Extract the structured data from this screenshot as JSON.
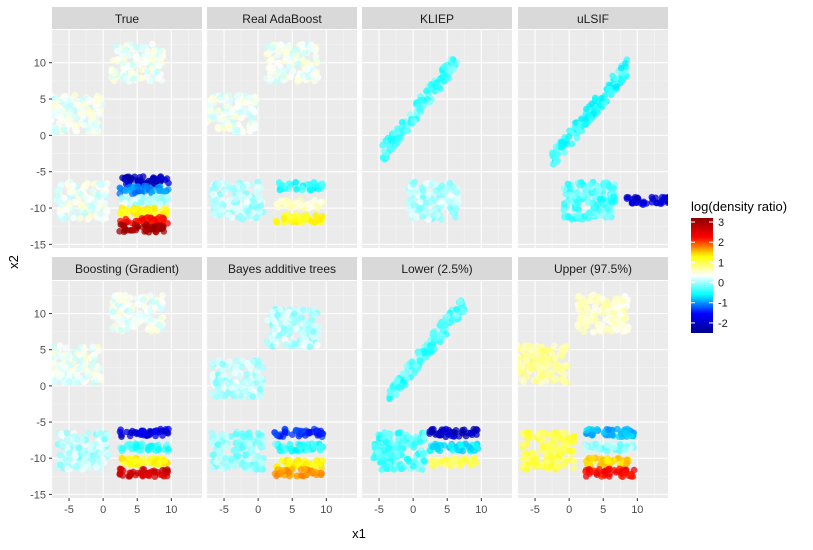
{
  "chart_data": {
    "type": "scatter",
    "title": "",
    "xlabel": "x1",
    "ylabel": "x2",
    "xlim": [
      -7.5,
      14.5
    ],
    "ylim": [
      -15.5,
      14.5
    ],
    "x_ticks": [
      -5,
      0,
      5,
      10
    ],
    "x_tick_labels": [
      "-5",
      "0",
      "5",
      "10"
    ],
    "y_ticks": [
      10,
      5,
      0,
      -5,
      -10,
      -15
    ],
    "y_tick_labels": [
      "10",
      "5",
      "0",
      "-5",
      "-10",
      "-15"
    ],
    "grid": true,
    "legend": {
      "title": "log(density ratio)",
      "position": "right",
      "range": [
        -2.5,
        3.2
      ],
      "ticks": [
        3,
        2,
        1,
        0,
        -1,
        -2
      ],
      "tick_labels": [
        "3",
        "2",
        "1",
        "0",
        "-1",
        "-2"
      ],
      "colors": [
        "#00008B",
        "#0000FF",
        "#00FFFF",
        "#FFFFFF",
        "#FFFF00",
        "#FF0000",
        "#8B0000"
      ]
    },
    "panels": [
      {
        "title": "True",
        "clusters": [
          {
            "name": "top-right cloud",
            "cx": 5,
            "cy": 10,
            "value": 0
          },
          {
            "name": "left cloud",
            "cx": -4,
            "cy": 3,
            "value": 0
          },
          {
            "name": "bottom-left cloud",
            "cx": -3,
            "cy": -9,
            "value": 0
          },
          {
            "name": "stripe -6",
            "cx": 6,
            "cy": -6.2,
            "value": -2.2
          },
          {
            "name": "stripe -7.5",
            "cx": 6,
            "cy": -7.5,
            "value": -1.2
          },
          {
            "name": "stripe -9",
            "cx": 6,
            "cy": -9,
            "value": -0.2
          },
          {
            "name": "stripe -10.5",
            "cx": 6,
            "cy": -10.5,
            "value": 1.0
          },
          {
            "name": "stripe -11.8",
            "cx": 6,
            "cy": -11.8,
            "value": 2.2
          },
          {
            "name": "stripe -12.8",
            "cx": 6,
            "cy": -12.8,
            "value": 3.0
          }
        ]
      },
      {
        "title": "Real AdaBoost",
        "clusters": [
          {
            "name": "top-right cloud",
            "cx": 5,
            "cy": 10,
            "value": 0
          },
          {
            "name": "left cloud",
            "cx": -4,
            "cy": 3,
            "value": 0
          },
          {
            "name": "bottom-left cloud",
            "cx": -3,
            "cy": -9,
            "value": -0.2
          },
          {
            "name": "band -7",
            "cx": 6,
            "cy": -7,
            "value": -0.6
          },
          {
            "name": "band -9.5",
            "cx": 6,
            "cy": -9.5,
            "value": 0.2
          },
          {
            "name": "band -11.5",
            "cx": 6,
            "cy": -11.5,
            "value": 0.9
          }
        ]
      },
      {
        "title": "KLIEP",
        "clusters": [
          {
            "name": "diagonal cloud",
            "cx": 1,
            "cy": 4,
            "value": -0.5
          },
          {
            "name": "bottom cloud",
            "cx": 3,
            "cy": -9,
            "value": -0.2
          }
        ]
      },
      {
        "title": "uLSIF",
        "clusters": [
          {
            "name": "diagonal cloud",
            "cx": 3,
            "cy": 3,
            "value": -0.6
          },
          {
            "name": "bottom cloud",
            "cx": 3,
            "cy": -9,
            "value": -0.5
          },
          {
            "name": "edge points",
            "cx": 12,
            "cy": -9,
            "value": -2.0
          }
        ]
      },
      {
        "title": "Boosting (Gradient)",
        "clusters": [
          {
            "name": "top-right cloud",
            "cx": 5,
            "cy": 10,
            "value": 0
          },
          {
            "name": "left cloud",
            "cx": -4,
            "cy": 3,
            "value": 0
          },
          {
            "name": "bottom-left cloud",
            "cx": -3,
            "cy": -9,
            "value": -0.2
          },
          {
            "name": "stripe -6.5",
            "cx": 6,
            "cy": -6.5,
            "value": -2.0
          },
          {
            "name": "stripe -8.5",
            "cx": 6,
            "cy": -8.5,
            "value": -0.6
          },
          {
            "name": "stripe -10.5",
            "cx": 6,
            "cy": -10.5,
            "value": 1.0
          },
          {
            "name": "stripe -12",
            "cx": 6,
            "cy": -12,
            "value": 2.6
          }
        ]
      },
      {
        "title": "Bayes additive trees",
        "clusters": [
          {
            "name": "top-right cloud",
            "cx": 5,
            "cy": 8,
            "value": -0.2
          },
          {
            "name": "left cloud",
            "cx": -3,
            "cy": 1,
            "value": -0.2
          },
          {
            "name": "bottom-left cloud",
            "cx": -3,
            "cy": -9,
            "value": -0.3
          },
          {
            "name": "stripe -6.5",
            "cx": 6,
            "cy": -6.5,
            "value": -1.6
          },
          {
            "name": "stripe -8.5",
            "cx": 6,
            "cy": -8.5,
            "value": -0.6
          },
          {
            "name": "stripe -10.8",
            "cx": 6,
            "cy": -10.8,
            "value": 1.0
          },
          {
            "name": "stripe -12",
            "cx": 6,
            "cy": -12,
            "value": 1.5
          }
        ]
      },
      {
        "title": "Lower (2.5%)",
        "clusters": [
          {
            "name": "diagonal cloud",
            "cx": 2,
            "cy": 5,
            "value": -0.5
          },
          {
            "name": "bottom cloud",
            "cx": -2,
            "cy": -9,
            "value": -0.5
          },
          {
            "name": "stripe -6.5",
            "cx": 6,
            "cy": -6.5,
            "value": -2.2
          },
          {
            "name": "stripe -8.5",
            "cx": 6,
            "cy": -8.5,
            "value": -0.8
          },
          {
            "name": "stripe -10.5",
            "cx": 6,
            "cy": -10.5,
            "value": 0.7
          }
        ]
      },
      {
        "title": "Upper (97.5%)",
        "clusters": [
          {
            "name": "top-right cloud",
            "cx": 5,
            "cy": 10,
            "value": 0.2
          },
          {
            "name": "left cloud",
            "cx": -4,
            "cy": 3,
            "value": 0.4
          },
          {
            "name": "bottom-left cloud",
            "cx": -3,
            "cy": -9,
            "value": 0.7
          },
          {
            "name": "stripe -6.5",
            "cx": 6,
            "cy": -6.5,
            "value": -1.0
          },
          {
            "name": "stripe -8.5",
            "cx": 6,
            "cy": -8.5,
            "value": -0.3
          },
          {
            "name": "stripe -10.5",
            "cx": 6,
            "cy": -10.5,
            "value": 1.2
          },
          {
            "name": "stripe -12",
            "cx": 6,
            "cy": -12,
            "value": 2.2
          }
        ]
      }
    ]
  }
}
